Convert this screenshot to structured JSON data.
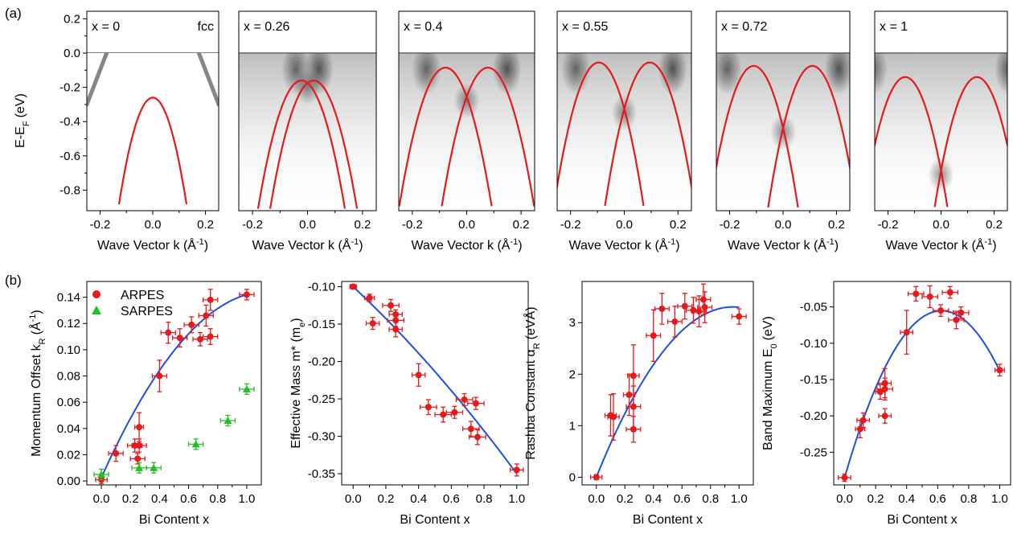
{
  "figure": {
    "panel_a_label": "(a)",
    "panel_b_label": "(b)"
  },
  "arpes_panels": {
    "ylabel": "E-E",
    "ylabel_sub": "F",
    "ylabel_unit": "(eV)",
    "xlabel": "Wave Vector k (Å",
    "xlabel_sup": "-1",
    "xlabel_close": ")",
    "x_ticks": [
      "-0.2",
      "0.0",
      "0.2"
    ],
    "y_ticks": [
      "0.2",
      "0.0",
      "-0.2",
      "-0.4",
      "-0.6",
      "-0.8"
    ],
    "xlim": [
      -0.25,
      0.25
    ],
    "ylim": [
      -0.92,
      0.22
    ],
    "band_color": "#e41a1c",
    "panels": [
      {
        "label": "x = 0",
        "tag": "fcc",
        "k0": 0.0,
        "E0": -0.26,
        "a": 38,
        "single": true
      },
      {
        "label": "x = 0.26",
        "tag": "",
        "k0": 0.022,
        "E0": -0.16,
        "a": 30,
        "single": false
      },
      {
        "label": "x = 0.4",
        "tag": "",
        "k0": 0.078,
        "E0": -0.085,
        "a": 28,
        "single": false
      },
      {
        "label": "x = 0.55",
        "tag": "",
        "k0": 0.095,
        "E0": -0.055,
        "a": 30,
        "single": false
      },
      {
        "label": "x = 0.72",
        "tag": "",
        "k0": 0.11,
        "E0": -0.075,
        "a": 30,
        "single": false
      },
      {
        "label": "x = 1",
        "tag": "",
        "k0": 0.135,
        "E0": -0.14,
        "a": 30,
        "single": false
      }
    ]
  },
  "chart_data": [
    {
      "type": "scatter",
      "id": "momentum_offset",
      "xlabel": "Bi Content x",
      "ylabel": "Momentum Offset k",
      "ylabel_sub": "R",
      "ylabel_unit": "(Å",
      "ylabel_unit_sup": "-1",
      "ylabel_unit_close": ")",
      "xlim": [
        -0.1,
        1.1
      ],
      "ylim": [
        -0.003,
        0.152
      ],
      "x_ticks": [
        0.0,
        0.2,
        0.4,
        0.6,
        0.8,
        1.0
      ],
      "y_ticks": [
        0.0,
        0.02,
        0.04,
        0.06,
        0.08,
        0.1,
        0.12,
        0.14
      ],
      "y_tick_labels": [
        "0.00",
        "0.02",
        "0.04",
        "0.06",
        "0.08",
        "0.10",
        "0.12",
        "0.14"
      ],
      "legend": {
        "position": "top-left",
        "entries": [
          {
            "name": "ARPES",
            "color": "#e41a1c",
            "marker": "circle"
          },
          {
            "name": "SARPES",
            "color": "#22c022",
            "marker": "triangle"
          }
        ]
      },
      "series": [
        {
          "name": "ARPES",
          "color": "#e41a1c",
          "marker": "circle",
          "points": [
            {
              "x": 0.0,
              "y": 0.001,
              "xe": 0.04,
              "ye": 0.003
            },
            {
              "x": 0.1,
              "y": 0.021,
              "xe": 0.05,
              "ye": 0.006
            },
            {
              "x": 0.23,
              "y": 0.027,
              "xe": 0.05,
              "ye": 0.005
            },
            {
              "x": 0.26,
              "y": 0.027,
              "xe": 0.05,
              "ye": 0.005
            },
            {
              "x": 0.25,
              "y": 0.017,
              "xe": 0.05,
              "ye": 0.004
            },
            {
              "x": 0.26,
              "y": 0.041,
              "xe": 0.03,
              "ye": 0.011
            },
            {
              "x": 0.4,
              "y": 0.08,
              "xe": 0.05,
              "ye": 0.012
            },
            {
              "x": 0.46,
              "y": 0.113,
              "xe": 0.05,
              "ye": 0.008
            },
            {
              "x": 0.54,
              "y": 0.109,
              "xe": 0.05,
              "ye": 0.007
            },
            {
              "x": 0.62,
              "y": 0.119,
              "xe": 0.05,
              "ye": 0.006
            },
            {
              "x": 0.68,
              "y": 0.108,
              "xe": 0.05,
              "ye": 0.005
            },
            {
              "x": 0.72,
              "y": 0.126,
              "xe": 0.05,
              "ye": 0.008
            },
            {
              "x": 0.75,
              "y": 0.138,
              "xe": 0.05,
              "ye": 0.008
            },
            {
              "x": 0.75,
              "y": 0.11,
              "xe": 0.05,
              "ye": 0.006
            },
            {
              "x": 1.0,
              "y": 0.142,
              "xe": 0.05,
              "ye": 0.004
            }
          ]
        },
        {
          "name": "SARPES",
          "color": "#22c022",
          "marker": "triangle",
          "points": [
            {
              "x": 0.0,
              "y": 0.005,
              "xe": 0.05,
              "ye": 0.004
            },
            {
              "x": 0.26,
              "y": 0.01,
              "xe": 0.05,
              "ye": 0.004
            },
            {
              "x": 0.36,
              "y": 0.01,
              "xe": 0.05,
              "ye": 0.004
            },
            {
              "x": 0.65,
              "y": 0.028,
              "xe": 0.05,
              "ye": 0.004
            },
            {
              "x": 0.87,
              "y": 0.046,
              "xe": 0.05,
              "ye": 0.004
            },
            {
              "x": 1.0,
              "y": 0.07,
              "xe": 0.05,
              "ye": 0.004
            }
          ]
        }
      ],
      "fit": {
        "color": "#1f4fe0",
        "coeffs": [
          0.0025,
          0.2475,
          -0.108
        ],
        "xrange": [
          0.0,
          1.0
        ]
      }
    },
    {
      "type": "scatter",
      "id": "effective_mass",
      "xlabel": "Bi Content x",
      "ylabel": "Effective Mass m* (m",
      "ylabel_sub": "e",
      "ylabel_close": ")",
      "xlim": [
        -0.07,
        1.07
      ],
      "ylim": [
        -0.365,
        -0.093
      ],
      "x_ticks": [
        0.0,
        0.2,
        0.4,
        0.6,
        0.8,
        1.0
      ],
      "y_ticks": [
        -0.1,
        -0.15,
        -0.2,
        -0.25,
        -0.3,
        -0.35
      ],
      "y_tick_labels": [
        "-0.10",
        "-0.15",
        "-0.20",
        "-0.25",
        "-0.30",
        "-0.35"
      ],
      "series": [
        {
          "name": "ARPES",
          "color": "#e41a1c",
          "marker": "circle",
          "points": [
            {
              "x": 0.0,
              "y": -0.1,
              "xe": 0.02,
              "ye": 0.003
            },
            {
              "x": 0.1,
              "y": -0.115,
              "xe": 0.03,
              "ye": 0.005
            },
            {
              "x": 0.12,
              "y": -0.149,
              "xe": 0.04,
              "ye": 0.008
            },
            {
              "x": 0.23,
              "y": -0.125,
              "xe": 0.05,
              "ye": 0.008
            },
            {
              "x": 0.26,
              "y": -0.137,
              "xe": 0.04,
              "ye": 0.006
            },
            {
              "x": 0.26,
              "y": -0.145,
              "xe": 0.05,
              "ye": 0.008
            },
            {
              "x": 0.26,
              "y": -0.157,
              "xe": 0.04,
              "ye": 0.01
            },
            {
              "x": 0.4,
              "y": -0.218,
              "xe": 0.04,
              "ye": 0.015
            },
            {
              "x": 0.46,
              "y": -0.261,
              "xe": 0.05,
              "ye": 0.01
            },
            {
              "x": 0.55,
              "y": -0.271,
              "xe": 0.05,
              "ye": 0.01
            },
            {
              "x": 0.62,
              "y": -0.268,
              "xe": 0.05,
              "ye": 0.008
            },
            {
              "x": 0.68,
              "y": -0.251,
              "xe": 0.05,
              "ye": 0.008
            },
            {
              "x": 0.72,
              "y": -0.29,
              "xe": 0.05,
              "ye": 0.01
            },
            {
              "x": 0.75,
              "y": -0.256,
              "xe": 0.05,
              "ye": 0.008
            },
            {
              "x": 0.76,
              "y": -0.301,
              "xe": 0.05,
              "ye": 0.01
            },
            {
              "x": 1.0,
              "y": -0.345,
              "xe": 0.04,
              "ye": 0.008
            }
          ]
        }
      ],
      "fit": {
        "color": "#1f4fe0",
        "coeffs": [
          -0.1,
          -0.204,
          -0.046
        ],
        "xrange": [
          0.0,
          1.0
        ]
      }
    },
    {
      "type": "scatter",
      "id": "rashba_constant",
      "xlabel": "Bi Content x",
      "ylabel": "Rashba Constant α",
      "ylabel_sub": "R",
      "ylabel_unit": "(eVÅ)",
      "xlim": [
        -0.1,
        1.1
      ],
      "ylim": [
        -0.15,
        3.8
      ],
      "x_ticks": [
        0.0,
        0.2,
        0.4,
        0.6,
        0.8,
        1.0
      ],
      "y_ticks": [
        0,
        1,
        2,
        3
      ],
      "y_tick_labels": [
        "0",
        "1",
        "2",
        "3"
      ],
      "series": [
        {
          "name": "ARPES",
          "color": "#e41a1c",
          "marker": "circle",
          "points": [
            {
              "x": 0.0,
              "y": 0.0,
              "xe": 0.04,
              "ye": 0.05
            },
            {
              "x": 0.1,
              "y": 1.2,
              "xe": 0.04,
              "ye": 0.4
            },
            {
              "x": 0.12,
              "y": 1.17,
              "xe": 0.04,
              "ye": 0.45
            },
            {
              "x": 0.23,
              "y": 1.6,
              "xe": 0.04,
              "ye": 0.4
            },
            {
              "x": 0.26,
              "y": 1.97,
              "xe": 0.04,
              "ye": 0.6
            },
            {
              "x": 0.26,
              "y": 1.37,
              "xe": 0.05,
              "ye": 0.4
            },
            {
              "x": 0.26,
              "y": 0.93,
              "xe": 0.05,
              "ye": 0.25
            },
            {
              "x": 0.4,
              "y": 2.75,
              "xe": 0.05,
              "ye": 0.5
            },
            {
              "x": 0.46,
              "y": 3.27,
              "xe": 0.05,
              "ye": 0.3
            },
            {
              "x": 0.55,
              "y": 3.02,
              "xe": 0.05,
              "ye": 0.3
            },
            {
              "x": 0.62,
              "y": 3.32,
              "xe": 0.05,
              "ye": 0.25
            },
            {
              "x": 0.68,
              "y": 3.24,
              "xe": 0.05,
              "ye": 0.25
            },
            {
              "x": 0.72,
              "y": 3.22,
              "xe": 0.05,
              "ye": 0.3
            },
            {
              "x": 0.75,
              "y": 3.45,
              "xe": 0.05,
              "ye": 0.3
            },
            {
              "x": 0.76,
              "y": 3.3,
              "xe": 0.05,
              "ye": 0.3
            },
            {
              "x": 1.0,
              "y": 3.12,
              "xe": 0.05,
              "ye": 0.15
            }
          ]
        }
      ],
      "fit": {
        "color": "#1f4fe0",
        "coeffs": [
          0.0,
          6.9,
          -3.6
        ],
        "xrange": [
          0.0,
          1.0
        ]
      }
    },
    {
      "type": "scatter",
      "id": "band_maximum",
      "xlabel": "Bi Content x",
      "ylabel": "Band Maximum E",
      "ylabel_sub": "0",
      "ylabel_unit": "(eV)",
      "xlim": [
        -0.07,
        1.07
      ],
      "ylim": [
        -0.295,
        -0.015
      ],
      "x_ticks": [
        0.0,
        0.2,
        0.4,
        0.6,
        0.8,
        1.0
      ],
      "y_ticks": [
        -0.05,
        -0.1,
        -0.15,
        -0.2,
        -0.25
      ],
      "y_tick_labels": [
        "-0.05",
        "-0.10",
        "-0.15",
        "-0.20",
        "-0.25"
      ],
      "series": [
        {
          "name": "ARPES",
          "color": "#e41a1c",
          "marker": "circle",
          "points": [
            {
              "x": 0.0,
              "y": -0.285,
              "xe": 0.04,
              "ye": 0.005
            },
            {
              "x": 0.1,
              "y": -0.218,
              "xe": 0.03,
              "ye": 0.012
            },
            {
              "x": 0.12,
              "y": -0.206,
              "xe": 0.04,
              "ye": 0.01
            },
            {
              "x": 0.23,
              "y": -0.167,
              "xe": 0.03,
              "ye": 0.01
            },
            {
              "x": 0.26,
              "y": -0.155,
              "xe": 0.04,
              "ye": 0.02
            },
            {
              "x": 0.26,
              "y": -0.163,
              "xe": 0.05,
              "ye": 0.015
            },
            {
              "x": 0.26,
              "y": -0.2,
              "xe": 0.04,
              "ye": 0.01
            },
            {
              "x": 0.4,
              "y": -0.085,
              "xe": 0.04,
              "ye": 0.03
            },
            {
              "x": 0.46,
              "y": -0.032,
              "xe": 0.05,
              "ye": 0.01
            },
            {
              "x": 0.55,
              "y": -0.036,
              "xe": 0.05,
              "ye": 0.015
            },
            {
              "x": 0.62,
              "y": -0.055,
              "xe": 0.05,
              "ye": 0.008
            },
            {
              "x": 0.68,
              "y": -0.03,
              "xe": 0.05,
              "ye": 0.008
            },
            {
              "x": 0.72,
              "y": -0.068,
              "xe": 0.05,
              "ye": 0.012
            },
            {
              "x": 0.75,
              "y": -0.058,
              "xe": 0.05,
              "ye": 0.008
            },
            {
              "x": 1.0,
              "y": -0.137,
              "xe": 0.03,
              "ye": 0.008
            }
          ]
        }
      ],
      "fit": {
        "color": "#1f4fe0",
        "coeffs": [
          -0.285,
          0.735,
          -0.588
        ],
        "xrange": [
          0.0,
          1.0
        ]
      }
    }
  ]
}
